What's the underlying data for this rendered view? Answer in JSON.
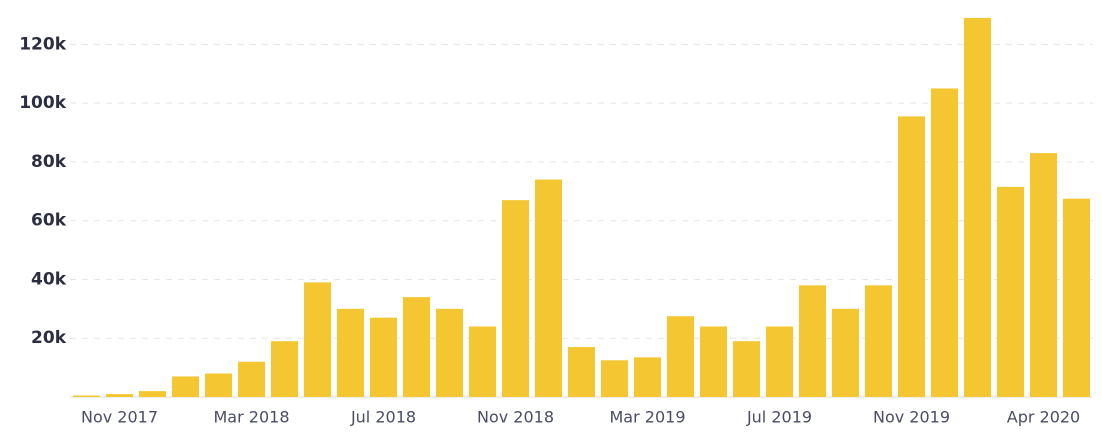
{
  "chart_data": {
    "type": "bar",
    "categories": [
      null,
      "Nov 2017",
      null,
      null,
      null,
      "Mar 2018",
      null,
      null,
      null,
      "Jul 2018",
      null,
      null,
      null,
      "Nov 2018",
      null,
      null,
      null,
      "Mar 2019",
      null,
      null,
      null,
      "Jul 2019",
      null,
      null,
      null,
      "Nov 2019",
      null,
      null,
      null,
      "Apr 2020",
      null
    ],
    "values": [
      500,
      1000,
      2000,
      7000,
      8000,
      12000,
      19000,
      39000,
      30000,
      27000,
      34000,
      30000,
      24000,
      67000,
      74000,
      17000,
      12500,
      13500,
      27500,
      24000,
      19000,
      24000,
      38000,
      30000,
      38000,
      95500,
      105000,
      129000,
      71500,
      83000,
      67500
    ],
    "color": "#f4c732",
    "ylim": [
      0,
      130000
    ],
    "yticks": [
      {
        "value": 20000,
        "label": "20k"
      },
      {
        "value": 40000,
        "label": "40k"
      },
      {
        "value": 60000,
        "label": "60k"
      },
      {
        "value": 80000,
        "label": "80k"
      },
      {
        "value": 100000,
        "label": "100k"
      },
      {
        "value": 120000,
        "label": "120k"
      }
    ],
    "grid": true
  }
}
